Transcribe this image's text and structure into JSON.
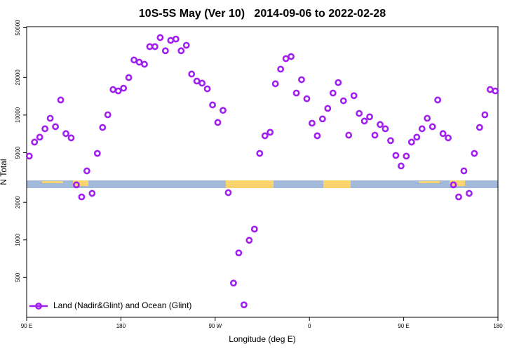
{
  "chart_data": {
    "type": "scatter",
    "title": "10S-5S May (Ver 10)   2014-09-06 to 2022-02-28",
    "x_label": "Longitude (deg E)",
    "y_label": "N Total",
    "log_y": true,
    "legend": "bottom-left",
    "xlim": [
      90,
      540
    ],
    "xticks": [
      {
        "value": 90,
        "label": "90 E"
      },
      180,
      {
        "value": 270,
        "label": "90 W"
      },
      {
        "value": 360,
        "label": "0"
      },
      {
        "value": 450,
        "label": "90 E"
      },
      {
        "value": 540,
        "label": "180"
      }
    ],
    "ylim": [
      240,
      51000
    ],
    "yticks": [
      500,
      1000,
      2000,
      5000,
      10000,
      20000,
      50000
    ],
    "x": [
      92.5,
      97.5,
      102.5,
      107.5,
      112.5,
      117.5,
      122.5,
      127.5,
      132.5,
      137.5,
      142.5,
      147.5,
      152.5,
      157.5,
      162.5,
      167.5,
      172.5,
      177.5,
      182.5,
      187.5,
      192.5,
      197.5,
      202.5,
      207.5,
      212.5,
      217.5,
      222.5,
      227.5,
      232.5,
      237.5,
      242.5,
      247.5,
      252.5,
      257.5,
      262.5,
      267.5,
      272.5,
      277.5,
      282.5,
      287.5,
      292.5,
      297.5,
      302.5,
      307.5,
      312.5,
      317.5,
      322.5,
      327.5,
      332.5,
      337.5,
      342.5,
      347.5,
      352.5,
      357.5,
      362.5,
      367.5,
      372.5,
      377.5,
      382.5,
      387.5,
      392.5,
      397.5,
      402.5,
      407.5,
      412.5,
      417.5,
      422.5,
      427.5,
      432.5,
      437.5,
      442.5,
      447.5,
      452.5,
      457.5,
      462.5,
      467.5,
      472.5,
      477.5,
      482.5,
      487.5,
      492.5,
      497.5,
      502.5,
      507.5,
      512.5,
      517.5,
      522.5,
      527.5,
      532.5,
      537.5
    ],
    "series": [
      {
        "name": "Land (Nadir&Glint) and Ocean (Glint)",
        "color": "#a020f0",
        "values": [
          4690,
          6070,
          6650,
          7760,
          9420,
          8070,
          13200,
          7100,
          6560,
          2760,
          2210,
          3570,
          2360,
          4930,
          7960,
          10050,
          16000,
          15600,
          16400,
          19950,
          27600,
          26500,
          25500,
          35300,
          35300,
          41700,
          32700,
          39600,
          40600,
          32700,
          36200,
          21300,
          18700,
          18000,
          16200,
          12050,
          8720,
          10900,
          2390,
          451,
          787,
          302,
          993,
          1220,
          4930,
          6820,
          7280,
          17800,
          23300,
          28300,
          29400,
          15000,
          19200,
          13500,
          8600,
          6820,
          9310,
          11300,
          15000,
          18200,
          13000,
          6900,
          14300,
          10300,
          8950,
          9680,
          6900,
          8400,
          7760,
          6240,
          4750,
          3910,
          4690,
          6070,
          6650,
          7760,
          9420,
          8070,
          13200,
          7100,
          6560,
          2760,
          2210,
          3570,
          2360,
          4930,
          7960,
          10050,
          16000,
          15600
        ]
      }
    ]
  }
}
